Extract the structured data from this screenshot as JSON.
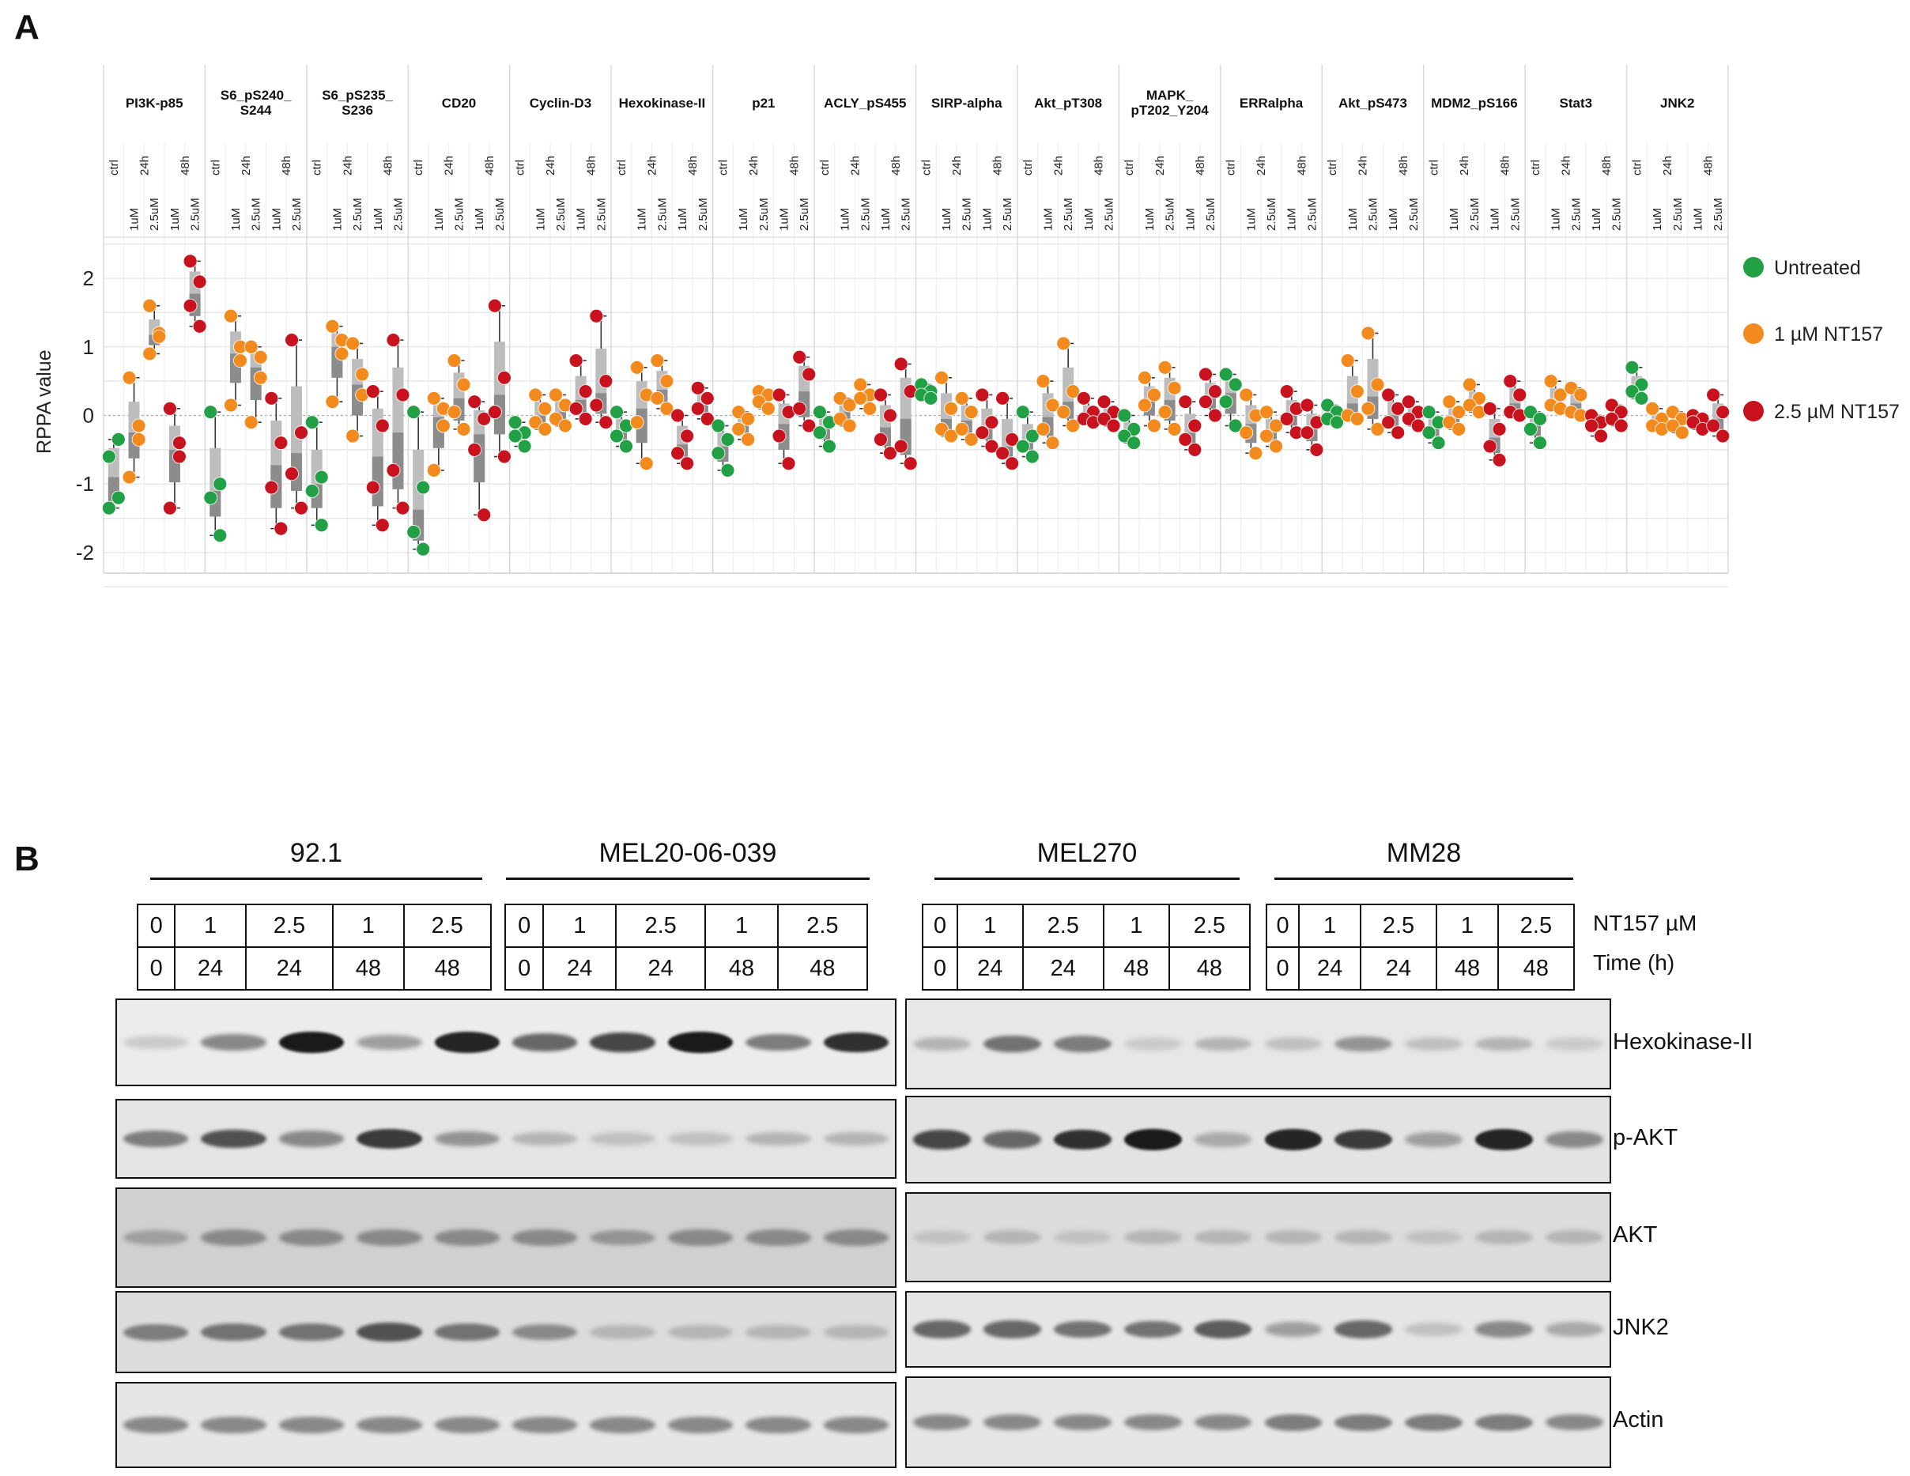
{
  "panel_a_label": "A",
  "panel_b_label": "B",
  "chart_data": {
    "type": "scatter",
    "subtype": "box-with-points",
    "ylabel": "RPPA value",
    "ylim": [
      -2.3,
      2.6
    ],
    "yticks": [
      -2,
      -1,
      0,
      1,
      2
    ],
    "grid": true,
    "conditions": [
      "ctrl",
      "1uM 24h",
      "2.5uM 24h",
      "1uM 48h",
      "2.5uM 48h"
    ],
    "condition_time_labels": [
      "ctrl",
      "24h",
      "48h"
    ],
    "condition_dose_labels": [
      "1uM",
      "2.5uM",
      "1uM",
      "2.5uM"
    ],
    "legend_position": "right",
    "legend": [
      {
        "label": "Untreated",
        "color": "#22a045"
      },
      {
        "label": "1 µM NT157",
        "color": "#f28a1e"
      },
      {
        "label": "2.5 µM NT157",
        "color": "#c8131f"
      }
    ],
    "series_colors": [
      "#22a045",
      "#f28a1e",
      "#f28a1e",
      "#c8131f",
      "#c8131f"
    ],
    "proteins": [
      {
        "name": "PI3K-p85",
        "values": [
          [
            -1.35,
            -1.2,
            -0.6,
            -0.35
          ],
          [
            0.55,
            -0.15,
            -0.9,
            -0.35
          ],
          [
            1.6,
            1.2,
            0.9,
            1.15
          ],
          [
            0.1,
            -0.4,
            -1.35,
            -0.6
          ],
          [
            2.25,
            1.95,
            1.6,
            1.3
          ]
        ]
      },
      {
        "name": "S6_pS240_S244",
        "values": [
          [
            0.05,
            -1.0,
            -1.2,
            -1.75
          ],
          [
            1.45,
            1.0,
            0.15,
            0.8
          ],
          [
            1.0,
            0.85,
            -0.1,
            0.55
          ],
          [
            0.25,
            -0.4,
            -1.05,
            -1.65
          ],
          [
            1.1,
            -0.25,
            -0.85,
            -1.35
          ]
        ]
      },
      {
        "name": "S6_pS235_S236",
        "values": [
          [
            -0.1,
            -0.9,
            -1.1,
            -1.6
          ],
          [
            1.3,
            1.1,
            0.2,
            0.9
          ],
          [
            1.05,
            0.6,
            -0.3,
            0.3
          ],
          [
            0.35,
            -0.15,
            -1.05,
            -1.6
          ],
          [
            1.1,
            0.3,
            -0.8,
            -1.35
          ]
        ]
      },
      {
        "name": "CD20",
        "values": [
          [
            0.05,
            -1.05,
            -1.7,
            -1.95
          ],
          [
            0.25,
            -0.15,
            -0.8,
            0.1
          ],
          [
            0.8,
            0.45,
            0.05,
            -0.2
          ],
          [
            0.2,
            -0.05,
            -0.5,
            -1.45
          ],
          [
            1.6,
            0.55,
            0.05,
            -0.6
          ]
        ]
      },
      {
        "name": "Cyclin-D3",
        "values": [
          [
            -0.1,
            -0.25,
            -0.3,
            -0.45
          ],
          [
            0.3,
            0.1,
            -0.1,
            -0.2
          ],
          [
            0.3,
            0.15,
            -0.05,
            -0.15
          ],
          [
            0.8,
            0.35,
            0.1,
            -0.05
          ],
          [
            1.45,
            0.5,
            0.15,
            -0.1
          ]
        ]
      },
      {
        "name": "Hexokinase-II",
        "values": [
          [
            0.05,
            -0.15,
            -0.3,
            -0.45
          ],
          [
            0.7,
            0.3,
            -0.1,
            -0.7
          ],
          [
            0.8,
            0.5,
            0.25,
            0.1
          ],
          [
            0.0,
            -0.3,
            -0.55,
            -0.7
          ],
          [
            0.4,
            0.25,
            0.1,
            -0.05
          ]
        ]
      },
      {
        "name": "p21",
        "values": [
          [
            -0.15,
            -0.35,
            -0.55,
            -0.8
          ],
          [
            0.05,
            -0.05,
            -0.2,
            -0.35
          ],
          [
            0.35,
            0.3,
            0.2,
            0.1
          ],
          [
            0.3,
            0.05,
            -0.3,
            -0.7
          ],
          [
            0.85,
            0.6,
            0.1,
            -0.15
          ]
        ]
      },
      {
        "name": "ACLY_pS455",
        "values": [
          [
            0.05,
            -0.1,
            -0.25,
            -0.45
          ],
          [
            0.25,
            0.15,
            -0.05,
            -0.15
          ],
          [
            0.45,
            0.3,
            0.25,
            0.1
          ],
          [
            0.3,
            0.0,
            -0.35,
            -0.55
          ],
          [
            0.75,
            0.35,
            -0.45,
            -0.7
          ]
        ]
      },
      {
        "name": "SIRP-alpha",
        "values": [
          [
            0.45,
            0.35,
            0.3,
            0.25
          ],
          [
            0.55,
            0.1,
            -0.2,
            -0.3
          ],
          [
            0.25,
            0.05,
            -0.2,
            -0.35
          ],
          [
            0.3,
            -0.1,
            -0.25,
            -0.45
          ],
          [
            0.25,
            -0.35,
            -0.55,
            -0.7
          ]
        ]
      },
      {
        "name": "Akt_pT308",
        "values": [
          [
            0.05,
            -0.3,
            -0.45,
            -0.6
          ],
          [
            0.5,
            0.15,
            -0.2,
            -0.4
          ],
          [
            1.05,
            0.35,
            0.05,
            -0.15
          ],
          [
            0.25,
            0.05,
            -0.05,
            -0.1
          ],
          [
            0.2,
            0.05,
            -0.05,
            -0.15
          ]
        ]
      },
      {
        "name": "MAPK_pT202_Y204",
        "values": [
          [
            0.0,
            -0.2,
            -0.3,
            -0.4
          ],
          [
            0.55,
            0.3,
            0.15,
            -0.15
          ],
          [
            0.7,
            0.4,
            0.05,
            -0.2
          ],
          [
            0.2,
            -0.15,
            -0.35,
            -0.5
          ],
          [
            0.6,
            0.35,
            0.2,
            0.0
          ]
        ]
      },
      {
        "name": "ERRalpha",
        "values": [
          [
            0.6,
            0.45,
            0.2,
            -0.15
          ],
          [
            0.3,
            0.0,
            -0.25,
            -0.55
          ],
          [
            0.05,
            -0.15,
            -0.3,
            -0.45
          ],
          [
            0.35,
            0.1,
            -0.05,
            -0.25
          ],
          [
            0.15,
            -0.1,
            -0.25,
            -0.5
          ]
        ]
      },
      {
        "name": "Akt_pS473",
        "values": [
          [
            0.15,
            0.05,
            -0.05,
            -0.1
          ],
          [
            0.8,
            0.35,
            0.0,
            -0.05
          ],
          [
            1.2,
            0.45,
            0.1,
            -0.2
          ],
          [
            0.3,
            0.1,
            -0.1,
            -0.25
          ],
          [
            0.2,
            0.05,
            -0.05,
            -0.15
          ]
        ]
      },
      {
        "name": "MDM2_pS166",
        "values": [
          [
            0.05,
            -0.1,
            -0.25,
            -0.4
          ],
          [
            0.2,
            0.05,
            -0.1,
            -0.2
          ],
          [
            0.45,
            0.25,
            0.15,
            0.05
          ],
          [
            0.1,
            -0.2,
            -0.45,
            -0.65
          ],
          [
            0.5,
            0.3,
            0.05,
            0.0
          ]
        ]
      },
      {
        "name": "Stat3",
        "values": [
          [
            0.05,
            -0.05,
            -0.2,
            -0.4
          ],
          [
            0.5,
            0.3,
            0.15,
            0.1
          ],
          [
            0.4,
            0.3,
            0.05,
            0.0
          ],
          [
            0.0,
            -0.1,
            -0.15,
            -0.3
          ],
          [
            0.15,
            0.05,
            -0.05,
            -0.15
          ]
        ]
      },
      {
        "name": "JNK2",
        "values": [
          [
            0.7,
            0.45,
            0.35,
            0.25
          ],
          [
            0.1,
            -0.05,
            -0.15,
            -0.2
          ],
          [
            0.05,
            -0.05,
            -0.15,
            -0.25
          ],
          [
            0.0,
            -0.05,
            -0.1,
            -0.2
          ],
          [
            0.3,
            0.05,
            -0.15,
            -0.3
          ]
        ]
      }
    ]
  },
  "western": {
    "left_cell_lines": [
      "92.1",
      "MEL20-06-039"
    ],
    "right_cell_lines": [
      "MEL270",
      "MM28"
    ],
    "doses": [
      "0",
      "1",
      "2.5",
      "1",
      "2.5"
    ],
    "times": [
      "0",
      "24",
      "24",
      "48",
      "48"
    ],
    "dose_label": "NT157 µM",
    "time_label": "Time (h)",
    "blots": [
      {
        "label": "Hexokinase-II",
        "left_intensity": [
          0.15,
          0.45,
          0.95,
          0.35,
          0.9,
          0.6,
          0.75,
          0.95,
          0.5,
          0.85
        ],
        "right_intensity": [
          0.25,
          0.55,
          0.5,
          0.15,
          0.25,
          0.2,
          0.4,
          0.2,
          0.25,
          0.15
        ]
      },
      {
        "label": "p-AKT",
        "left_intensity": [
          0.5,
          0.7,
          0.45,
          0.8,
          0.4,
          0.25,
          0.2,
          0.2,
          0.25,
          0.25
        ],
        "right_intensity": [
          0.75,
          0.6,
          0.85,
          0.95,
          0.3,
          0.9,
          0.8,
          0.35,
          0.9,
          0.45
        ]
      },
      {
        "label": "AKT",
        "left_intensity": [
          0.35,
          0.45,
          0.45,
          0.45,
          0.45,
          0.45,
          0.4,
          0.45,
          0.45,
          0.45
        ],
        "right_intensity": [
          0.2,
          0.25,
          0.2,
          0.25,
          0.25,
          0.25,
          0.25,
          0.2,
          0.25,
          0.25
        ]
      },
      {
        "label": "JNK2",
        "left_intensity": [
          0.5,
          0.55,
          0.55,
          0.7,
          0.55,
          0.45,
          0.25,
          0.25,
          0.25,
          0.25
        ],
        "right_intensity": [
          0.6,
          0.6,
          0.55,
          0.55,
          0.65,
          0.35,
          0.6,
          0.2,
          0.45,
          0.3
        ]
      },
      {
        "label": "Actin",
        "left_intensity": [
          0.45,
          0.45,
          0.45,
          0.45,
          0.45,
          0.45,
          0.45,
          0.45,
          0.45,
          0.45
        ],
        "right_intensity": [
          0.45,
          0.45,
          0.45,
          0.45,
          0.45,
          0.5,
          0.5,
          0.5,
          0.5,
          0.45
        ]
      }
    ]
  }
}
